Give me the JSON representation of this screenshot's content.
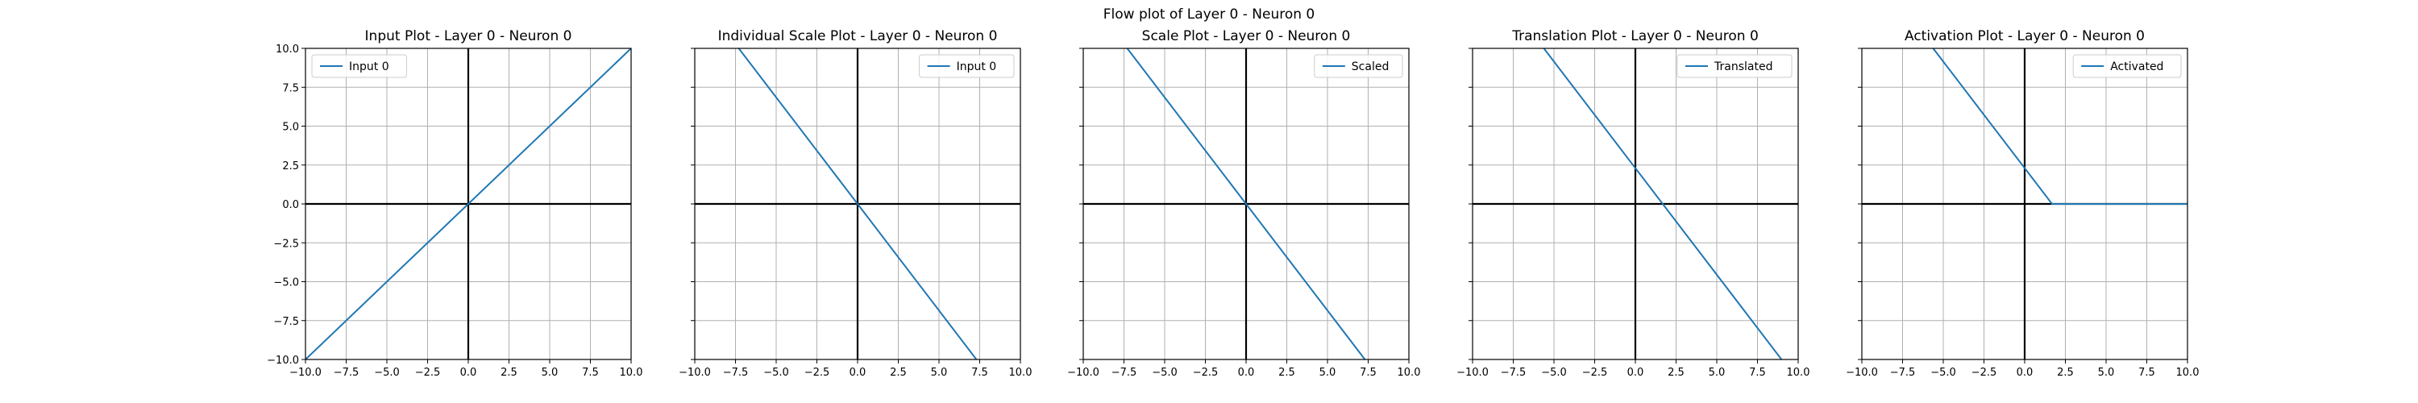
{
  "figure": {
    "suptitle": "Flow plot of Layer 0 - Neuron 0"
  },
  "chart_data": [
    {
      "type": "line",
      "title": "Input Plot - Layer 0 - Neuron 0",
      "xlabel": "",
      "ylabel": "",
      "xlim": [
        -10,
        10
      ],
      "ylim": [
        -10,
        10
      ],
      "xticks": [
        "−10.0",
        "−7.5",
        "−5.0",
        "−2.5",
        "0.0",
        "2.5",
        "5.0",
        "7.5",
        "10.0"
      ],
      "yticks": [
        "−10.0",
        "−7.5",
        "−5.0",
        "−2.5",
        "0.0",
        "2.5",
        "5.0",
        "7.5",
        "10.0"
      ],
      "show_yticks": true,
      "grid": true,
      "legend": "top-left",
      "series": [
        {
          "name": "Input 0",
          "color": "#1f77b4",
          "x": [
            -10,
            10
          ],
          "y": [
            -10,
            10
          ]
        }
      ]
    },
    {
      "type": "line",
      "title": "Individual Scale Plot - Layer 0 - Neuron 0",
      "xlabel": "",
      "ylabel": "",
      "xlim": [
        -10,
        10
      ],
      "ylim": [
        -10,
        10
      ],
      "xticks": [
        "−10.0",
        "−7.5",
        "−5.0",
        "−2.5",
        "0.0",
        "2.5",
        "5.0",
        "7.5",
        "10.0"
      ],
      "yticks": [],
      "show_yticks": false,
      "grid": true,
      "legend": "top-right",
      "series": [
        {
          "name": "Input 0",
          "color": "#1f77b4",
          "x": [
            -10,
            10
          ],
          "y": [
            13.7,
            -13.7
          ]
        }
      ]
    },
    {
      "type": "line",
      "title": "Scale Plot - Layer 0 - Neuron 0",
      "xlabel": "",
      "ylabel": "",
      "xlim": [
        -10,
        10
      ],
      "ylim": [
        -10,
        10
      ],
      "xticks": [
        "−10.0",
        "−7.5",
        "−5.0",
        "−2.5",
        "0.0",
        "2.5",
        "5.0",
        "7.5",
        "10.0"
      ],
      "yticks": [],
      "show_yticks": false,
      "grid": true,
      "legend": "top-right",
      "series": [
        {
          "name": "Scaled",
          "color": "#1f77b4",
          "x": [
            -10,
            10
          ],
          "y": [
            13.7,
            -13.7
          ]
        }
      ]
    },
    {
      "type": "line",
      "title": "Translation Plot - Layer 0 - Neuron 0",
      "xlabel": "",
      "ylabel": "",
      "xlim": [
        -10,
        10
      ],
      "ylim": [
        -10,
        10
      ],
      "xticks": [
        "−10.0",
        "−7.5",
        "−5.0",
        "−2.5",
        "0.0",
        "2.5",
        "5.0",
        "7.5",
        "10.0"
      ],
      "yticks": [],
      "show_yticks": false,
      "grid": true,
      "legend": "top-right",
      "series": [
        {
          "name": "Translated",
          "color": "#1f77b4",
          "x": [
            -10,
            10
          ],
          "y": [
            16.0,
            -11.4
          ]
        }
      ]
    },
    {
      "type": "line",
      "title": "Activation Plot - Layer 0 - Neuron 0",
      "xlabel": "",
      "ylabel": "",
      "xlim": [
        -10,
        10
      ],
      "ylim": [
        -10,
        10
      ],
      "xticks": [
        "−10.0",
        "−7.5",
        "−5.0",
        "−2.5",
        "0.0",
        "2.5",
        "5.0",
        "7.5",
        "10.0"
      ],
      "yticks": [],
      "show_yticks": false,
      "grid": true,
      "legend": "top-right",
      "series": [
        {
          "name": "Activated",
          "color": "#1f77b4",
          "x": [
            -10,
            1.68,
            10
          ],
          "y": [
            16.0,
            0,
            0
          ]
        }
      ]
    }
  ]
}
